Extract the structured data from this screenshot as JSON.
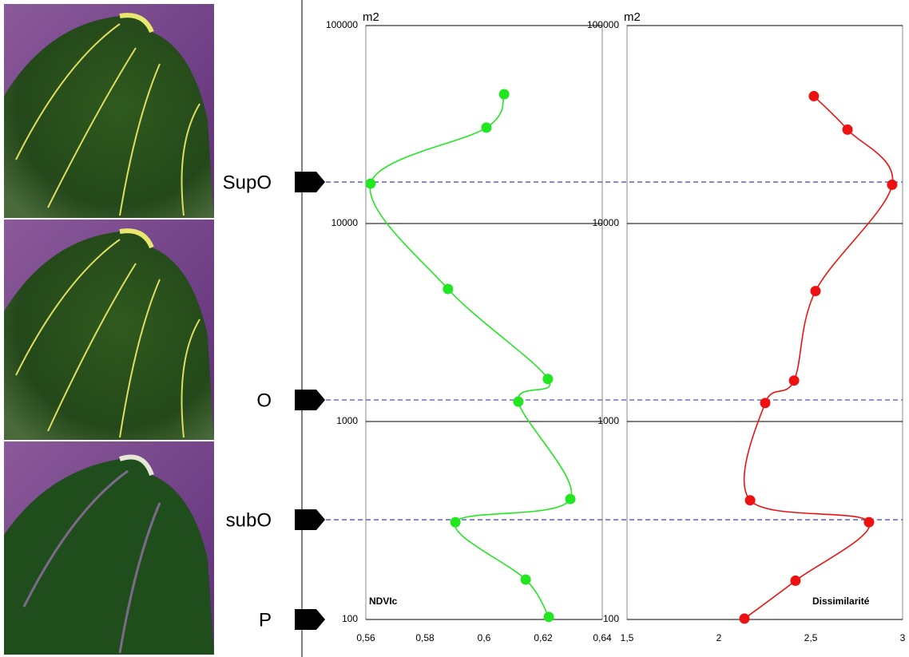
{
  "chart_data": [
    {
      "type": "line",
      "y_label": "m2",
      "ylog": true,
      "ylim": [
        100,
        100000
      ],
      "yticks": [
        100,
        1000,
        10000,
        100000
      ],
      "xlim": [
        0.56,
        0.64
      ],
      "xticks": [
        {
          "value": 0.56,
          "label": "0,56"
        },
        {
          "value": 0.58,
          "label": "0,58"
        },
        {
          "value": 0.6,
          "label": "0,6"
        },
        {
          "value": 0.62,
          "label": "0,62"
        },
        {
          "value": 0.64,
          "label": "0,64"
        }
      ],
      "grid": true,
      "series": [
        {
          "name": "NDVIc",
          "color": "#22e622",
          "x": [
            0.6068,
            0.6008,
            0.5616,
            0.5878,
            0.6216,
            0.6116,
            0.6292,
            0.5903,
            0.6141,
            0.6219
          ],
          "y": [
            45000,
            30500,
            15900,
            4670,
            1640,
            1260,
            406,
            310,
            159,
            103
          ]
        }
      ]
    },
    {
      "type": "line",
      "y_label": "m2",
      "ylog": true,
      "ylim": [
        100,
        100000
      ],
      "yticks": [
        100,
        1000,
        10000,
        100000
      ],
      "xlim": [
        1.5,
        3
      ],
      "xticks": [
        {
          "value": 1.5,
          "label": "1,5"
        },
        2,
        {
          "value": 2.5,
          "label": "2,5"
        },
        3
      ],
      "grid": true,
      "series": [
        {
          "name": "Dissimilarité",
          "color": "#ee1111",
          "x": [
            2.517,
            2.7,
            2.943,
            2.526,
            2.409,
            2.252,
            2.17,
            2.817,
            2.417,
            2.139
          ],
          "y": [
            44000,
            29800,
            15700,
            4560,
            1610,
            1240,
            400,
            310,
            157,
            101
          ]
        }
      ]
    }
  ],
  "levels": [
    {
      "label": "SupO",
      "value": 16200,
      "dashed": true
    },
    {
      "label": "O",
      "value": 1285,
      "dashed": true
    },
    {
      "label": "subO",
      "value": 319,
      "dashed": true
    },
    {
      "label": "P",
      "value": 100,
      "dashed": false
    }
  ]
}
